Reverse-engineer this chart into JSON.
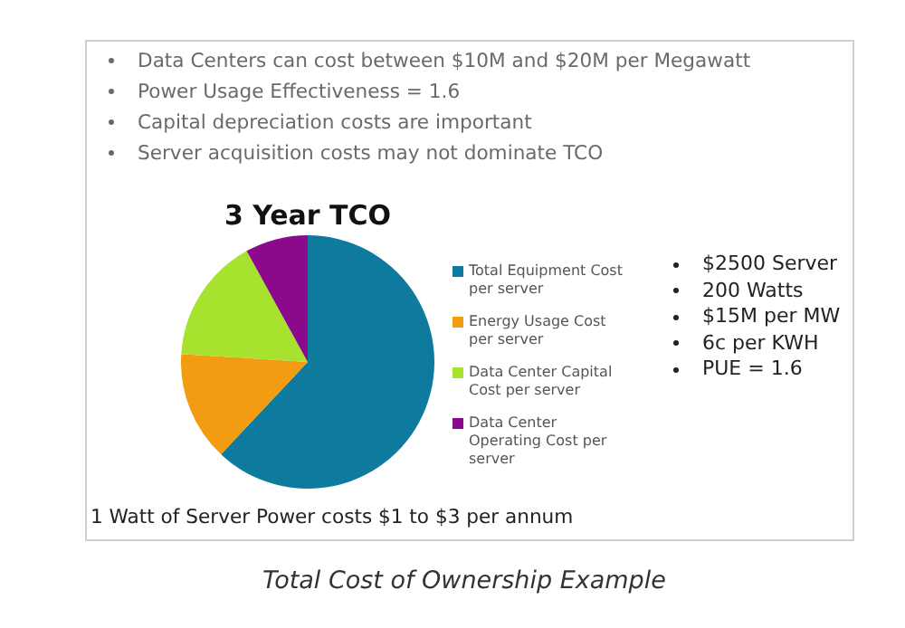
{
  "chart_data": {
    "type": "pie",
    "title": "3 Year TCO",
    "categories": [
      "Total Equipment Cost per server",
      "Energy Usage Cost per server",
      "Data Center Capital Cost per server",
      "Data Center Operating Cost per server"
    ],
    "values": [
      62,
      14,
      16,
      8
    ],
    "colors": [
      "#0e7a9e",
      "#f39c12",
      "#a6e22e",
      "#8b0a8b"
    ],
    "legend": "right",
    "annotations": [
      "Data Centers can cost between $10M and $20M per Megawatt",
      "Power Usage Effectiveness = 1.6",
      "Capital depreciation costs are important",
      "Server acquisition costs may not dominate TCO",
      "$2500 Server",
      "200 Watts",
      "$15M per MW",
      "6c per KWH",
      "PUE = 1.6",
      "1 Watt of Server Power costs $1 to $3 per annum",
      "Total Cost of Ownership Example"
    ]
  }
}
